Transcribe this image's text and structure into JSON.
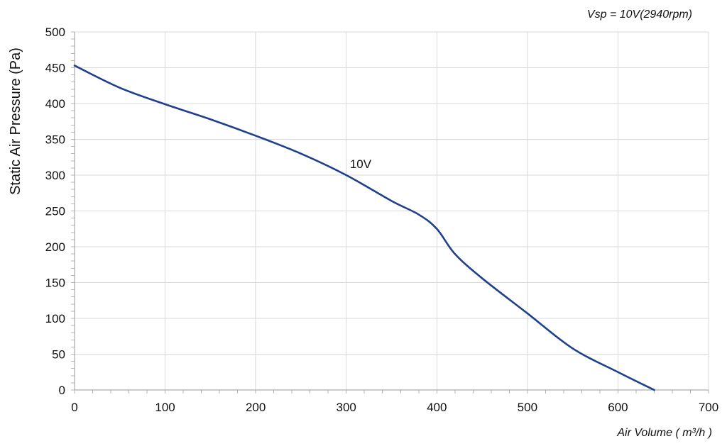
{
  "chart_data": {
    "type": "line",
    "title": "",
    "header_note": "Vsp = 10V(2940rpm)",
    "xlabel": "Air Volume ( m³/h )",
    "ylabel": "Static Air Pressure  (Pa)",
    "xlim": [
      0,
      700
    ],
    "ylim": [
      0,
      500
    ],
    "x_ticks": [
      0,
      100,
      200,
      300,
      400,
      500,
      600,
      700
    ],
    "y_ticks": [
      0,
      50,
      100,
      150,
      200,
      250,
      300,
      350,
      400,
      450,
      500
    ],
    "x_tick_labels": [
      "0",
      "100",
      "200",
      "300",
      "400",
      "500",
      "600",
      "700"
    ],
    "y_tick_labels": [
      "0",
      "50",
      "100",
      "150",
      "200",
      "250",
      "300",
      "350",
      "400",
      "450",
      "500"
    ],
    "grid": true,
    "legend": "none",
    "series": [
      {
        "name": "10V",
        "color": "#1f3f8f",
        "label_anchor": {
          "x": 304,
          "y": 310
        },
        "points": [
          {
            "x": 0,
            "y": 453
          },
          {
            "x": 50,
            "y": 422
          },
          {
            "x": 100,
            "y": 399
          },
          {
            "x": 150,
            "y": 378
          },
          {
            "x": 200,
            "y": 355
          },
          {
            "x": 250,
            "y": 330
          },
          {
            "x": 300,
            "y": 300
          },
          {
            "x": 350,
            "y": 264
          },
          {
            "x": 380,
            "y": 245
          },
          {
            "x": 400,
            "y": 225
          },
          {
            "x": 420,
            "y": 190
          },
          {
            "x": 450,
            "y": 156
          },
          {
            "x": 500,
            "y": 107
          },
          {
            "x": 550,
            "y": 58
          },
          {
            "x": 600,
            "y": 25
          },
          {
            "x": 640,
            "y": 0
          }
        ]
      }
    ]
  }
}
